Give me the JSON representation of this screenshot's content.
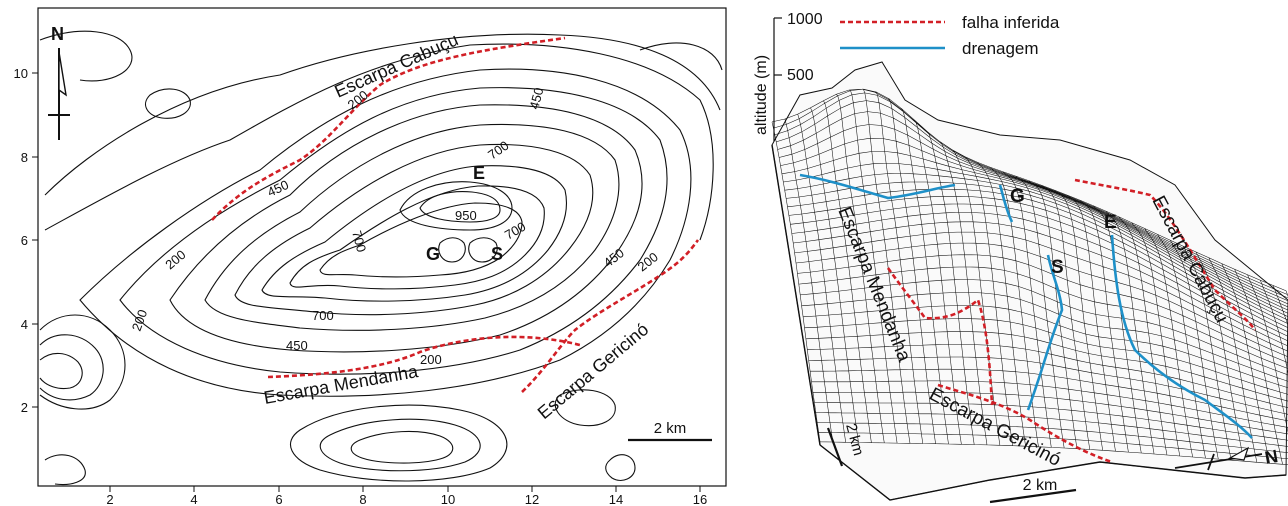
{
  "contour_map": {
    "north": "N",
    "x_ticks": [
      "2",
      "4",
      "6",
      "8",
      "10",
      "12",
      "14",
      "16"
    ],
    "y_ticks": [
      "2",
      "4",
      "6",
      "8",
      "10"
    ],
    "contour_labels": [
      "200",
      "200",
      "200",
      "200",
      "450",
      "450",
      "450",
      "450",
      "700",
      "700",
      "700",
      "950",
      "200"
    ],
    "escarpments": {
      "cabucu": "Escarpa Cabuçu",
      "mendanha": "Escarpa Mendanha",
      "gericino": "Escarpa Gericinó"
    },
    "peaks": {
      "e": "E",
      "g": "G",
      "s": "S"
    },
    "scale": "2 km"
  },
  "block_diagram": {
    "z_axis_label": "altitude (m)",
    "z_ticks": [
      "1000",
      "500"
    ],
    "legend": {
      "fault": "falha inferida",
      "drainage": "drenagem"
    },
    "escarpments": {
      "cabucu": "Escarpa Cabuçu",
      "mendanha": "Escarpa Mendanha",
      "gericino": "Escarpa Gericinó"
    },
    "peaks": {
      "g": "G",
      "e": "E",
      "s": "S"
    },
    "scale_bottom": "2 km",
    "scale_side": "2 km",
    "north": "N"
  },
  "colors": {
    "fault": "#d21f26",
    "drainage": "#1e90c8"
  }
}
